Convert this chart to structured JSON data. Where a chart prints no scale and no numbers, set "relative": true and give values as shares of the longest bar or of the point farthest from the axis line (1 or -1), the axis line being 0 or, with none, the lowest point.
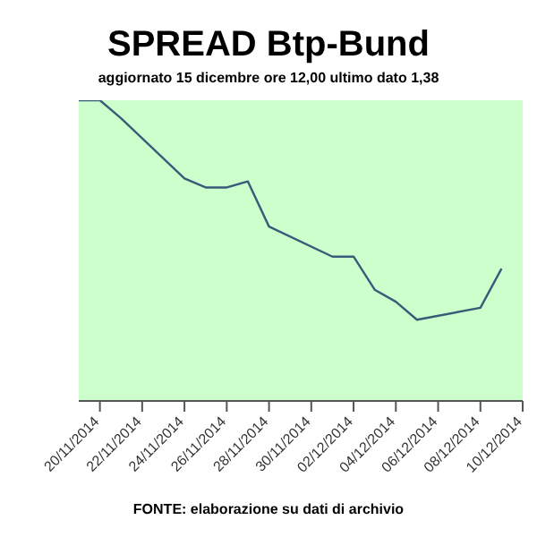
{
  "chart_data": {
    "type": "line",
    "title": "SPREAD Btp-Bund",
    "subtitle": "aggiornato 15 dicembre ore 12,00  ultimo dato  1,38",
    "relative": true,
    "x": [
      "2014-11-19",
      "2014-11-20",
      "2014-11-21",
      "2014-11-24",
      "2014-11-25",
      "2014-11-26",
      "2014-11-27",
      "2014-11-28",
      "2014-12-01",
      "2014-12-02",
      "2014-12-03",
      "2014-12-04",
      "2014-12-05",
      "2014-12-08",
      "2014-12-09"
    ],
    "series": [
      {
        "color": "#3a5a7a",
        "values": [
          1,
          1,
          0.94,
          0.74,
          0.71,
          0.71,
          0.73,
          0.58,
          0.48,
          0.48,
          0.37,
          0.33,
          0.27,
          0.31,
          0.44
        ]
      }
    ],
    "xlim": [
      "2014-11-19",
      "2014-12-10"
    ],
    "xticks": [
      {
        "value": "2014-11-20",
        "label": "20/11/2014"
      },
      {
        "value": "2014-11-22",
        "label": "22/11/2014"
      },
      {
        "value": "2014-11-24",
        "label": "24/11/2014"
      },
      {
        "value": "2014-11-26",
        "label": "26/11/2014"
      },
      {
        "value": "2014-11-28",
        "label": "28/11/2014"
      },
      {
        "value": "2014-11-30",
        "label": "30/11/2014"
      },
      {
        "value": "2014-12-02",
        "label": "02/12/2014"
      },
      {
        "value": "2014-12-04",
        "label": "04/12/2014"
      },
      {
        "value": "2014-12-06",
        "label": "06/12/2014"
      },
      {
        "value": "2014-12-08",
        "label": "08/12/2014"
      },
      {
        "value": "2014-12-10",
        "label": "10/12/2014"
      }
    ],
    "annotations": [
      "FONTE: elaborazione su dati di archivio"
    ],
    "legend": false,
    "marker": "none",
    "line_style": "solid"
  }
}
